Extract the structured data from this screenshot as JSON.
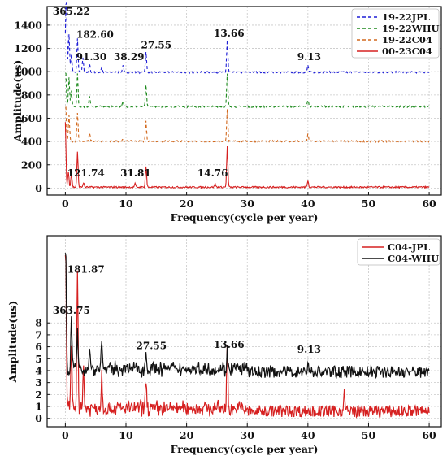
{
  "chart_data": [
    {
      "type": "line",
      "xlabel": "Frequency(cycle per year)",
      "ylabel": "Amplitude(us)",
      "xlim": [
        -3,
        62
      ],
      "ylim": [
        -60,
        1560
      ],
      "xticks": [
        0,
        10,
        20,
        30,
        40,
        50,
        60
      ],
      "yticks": [
        0,
        200,
        400,
        600,
        800,
        1000,
        1200,
        1400
      ],
      "grid": true,
      "legend_position": "top-right",
      "series": [
        {
          "name": "19-22JPL",
          "color": "#1f1fd6",
          "dash": "4,3",
          "baseline": 995,
          "peaks": [
            [
              0.05,
              310
            ],
            [
              0.2,
              500
            ],
            [
              0.6,
              330
            ],
            [
              2.0,
              285
            ],
            [
              1.0,
              150
            ],
            [
              2.9,
              120
            ],
            [
              4.0,
              70
            ],
            [
              6.0,
              45
            ],
            [
              9.5,
              55
            ],
            [
              13.3,
              170
            ],
            [
              26.7,
              280
            ],
            [
              40.0,
              60
            ]
          ]
        },
        {
          "name": "19-22WHU",
          "color": "#1e8a1e",
          "dash": "4,3",
          "baseline": 700,
          "peaks": [
            [
              0.05,
              330
            ],
            [
              0.6,
              250
            ],
            [
              1.0,
              130
            ],
            [
              2.0,
              280
            ],
            [
              4.0,
              90
            ],
            [
              9.5,
              40
            ],
            [
              13.3,
              180
            ],
            [
              26.7,
              280
            ],
            [
              40.0,
              60
            ]
          ]
        },
        {
          "name": "19-22C04",
          "color": "#d2691e",
          "dash": "4,3",
          "baseline": 402,
          "peaks": [
            [
              0.05,
              330
            ],
            [
              0.6,
              220
            ],
            [
              2.0,
              250
            ],
            [
              4.0,
              70
            ],
            [
              9.5,
              30
            ],
            [
              13.3,
              170
            ],
            [
              26.7,
              280
            ],
            [
              40.0,
              60
            ]
          ]
        },
        {
          "name": "00-23C04",
          "color": "#d62020",
          "dash": "",
          "baseline": 8,
          "peaks": [
            [
              0.0,
              560
            ],
            [
              0.5,
              140
            ],
            [
              1.0,
              120
            ],
            [
              2.0,
              300
            ],
            [
              3.0,
              40
            ],
            [
              11.5,
              30
            ],
            [
              13.3,
              180
            ],
            [
              24.7,
              30
            ],
            [
              26.7,
              350
            ],
            [
              40.0,
              60
            ]
          ]
        }
      ],
      "annotations": [
        {
          "text": "365.22",
          "x": 1.0,
          "y": 1490
        },
        {
          "text": "182.60",
          "x": 4.9,
          "y": 1290
        },
        {
          "text": "91.30",
          "x": 4.3,
          "y": 1100
        },
        {
          "text": "38.29",
          "x": 10.5,
          "y": 1100
        },
        {
          "text": "27.55",
          "x": 15.0,
          "y": 1200
        },
        {
          "text": "13.66",
          "x": 27.0,
          "y": 1300
        },
        {
          "text": "9.13",
          "x": 40.2,
          "y": 1100
        },
        {
          "text": "121.74",
          "x": 3.4,
          "y": 100
        },
        {
          "text": "31.81",
          "x": 11.6,
          "y": 100
        },
        {
          "text": "14.76",
          "x": 24.3,
          "y": 100
        }
      ]
    },
    {
      "type": "line",
      "xlabel": "Frequency(cycle per year)",
      "ylabel": "Amplitude(us)",
      "xlim": [
        -3,
        62
      ],
      "ylim": [
        -0.7,
        15.3
      ],
      "xticks": [
        0,
        10,
        20,
        30,
        40,
        50,
        60
      ],
      "yticks": [
        0,
        1,
        2,
        3,
        4,
        5,
        6,
        7,
        8
      ],
      "grid": true,
      "legend_position": "top-right",
      "series": [
        {
          "name": "C04-JPL",
          "color": "#d62020",
          "dash": "",
          "baseline": 0.6,
          "peaks": [
            [
              0.05,
              14.2
            ],
            [
              2.0,
              11.8
            ],
            [
              1.0,
              5.5
            ],
            [
              3.0,
              3.5
            ],
            [
              6.0,
              2.8
            ],
            [
              13.3,
              2.5
            ],
            [
              26.7,
              5.0
            ],
            [
              46.0,
              1.5
            ]
          ]
        },
        {
          "name": "C04-WHU",
          "color": "#111111",
          "dash": "",
          "baseline": 3.9,
          "peaks": [
            [
              0.05,
              10.8
            ],
            [
              1.0,
              4.5
            ],
            [
              2.0,
              2.8
            ],
            [
              4.0,
              1.8
            ],
            [
              6.0,
              2.6
            ],
            [
              13.3,
              1.4
            ],
            [
              26.7,
              1.4
            ],
            [
              40.0,
              0.9
            ]
          ]
        }
      ],
      "annotations": [
        {
          "text": "181.87",
          "x": 3.4,
          "y": 12.2
        },
        {
          "text": "363.75",
          "x": 1.0,
          "y": 8.75
        },
        {
          "text": "27.55",
          "x": 14.2,
          "y": 5.8
        },
        {
          "text": "13.66",
          "x": 27.0,
          "y": 5.9
        },
        {
          "text": "9.13",
          "x": 40.2,
          "y": 5.5
        }
      ]
    }
  ]
}
